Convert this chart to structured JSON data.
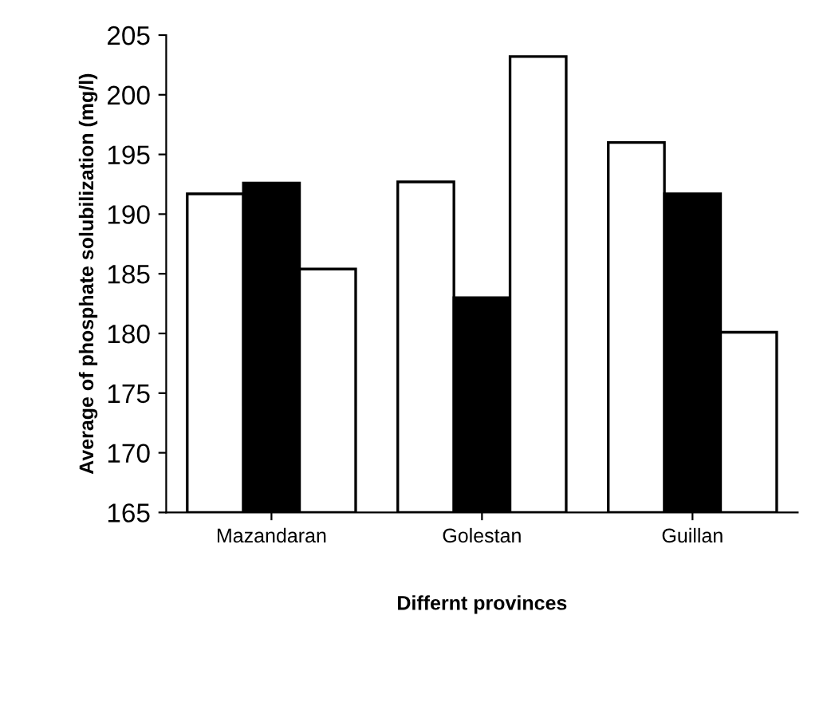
{
  "chart_data": {
    "type": "bar",
    "xlabel": "Differnt provinces",
    "ylabel": "Average of phosphate solubilization (mg/l)",
    "categories": [
      "Mazandaran",
      "Golestan",
      "Guillan"
    ],
    "series": [
      {
        "color": "#ffffff",
        "values": [
          191.7,
          192.7,
          196.0
        ]
      },
      {
        "color": "#000000",
        "values": [
          192.6,
          183.0,
          191.7
        ]
      },
      {
        "color": "#ffffff",
        "values": [
          185.4,
          203.2,
          180.1
        ]
      }
    ],
    "ylim": [
      165,
      205
    ],
    "yticks": [
      165,
      170,
      175,
      180,
      185,
      190,
      195,
      200,
      205
    ],
    "grid": false,
    "legend": false
  }
}
